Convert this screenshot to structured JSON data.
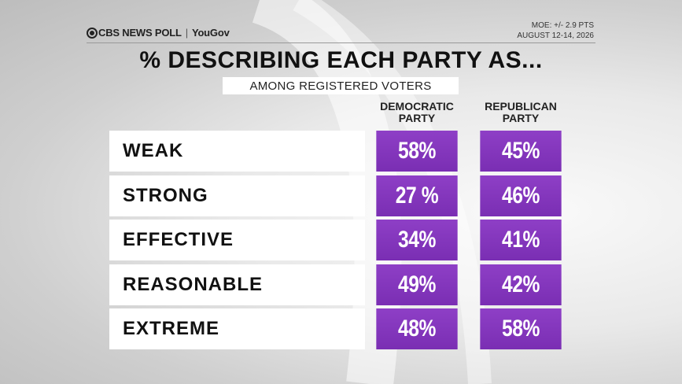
{
  "header": {
    "brand": "CBS NEWS POLL",
    "partner": "YouGov",
    "moe": "MOE: +/- 2.9 PTS",
    "dates": "AUGUST 12-14, 2026"
  },
  "title": "% DESCRIBING EACH PARTY AS...",
  "subtitle": "AMONG REGISTERED VOTERS",
  "colors": {
    "cell": "#8240BE",
    "label_bg": "#FFFFFF"
  },
  "chart_data": {
    "type": "table",
    "title": "% DESCRIBING EACH PARTY AS...",
    "columns": [
      {
        "line1": "DEMOCRATIC",
        "line2": "PARTY"
      },
      {
        "line1": "REPUBLICAN",
        "line2": "PARTY"
      }
    ],
    "series": [
      {
        "name": "DEMOCRATIC PARTY",
        "values": [
          58,
          27,
          34,
          49,
          48
        ]
      },
      {
        "name": "REPUBLICAN PARTY",
        "values": [
          45,
          46,
          41,
          42,
          58
        ]
      }
    ],
    "rows": [
      {
        "label": "WEAK",
        "dem": "58%",
        "rep": "45%"
      },
      {
        "label": "STRONG",
        "dem": "27 %",
        "rep": "46%"
      },
      {
        "label": "EFFECTIVE",
        "dem": "34%",
        "rep": "41%"
      },
      {
        "label": "REASONABLE",
        "dem": "49%",
        "rep": "42%"
      },
      {
        "label": "EXTREME",
        "dem": "48%",
        "rep": "58%"
      }
    ]
  }
}
